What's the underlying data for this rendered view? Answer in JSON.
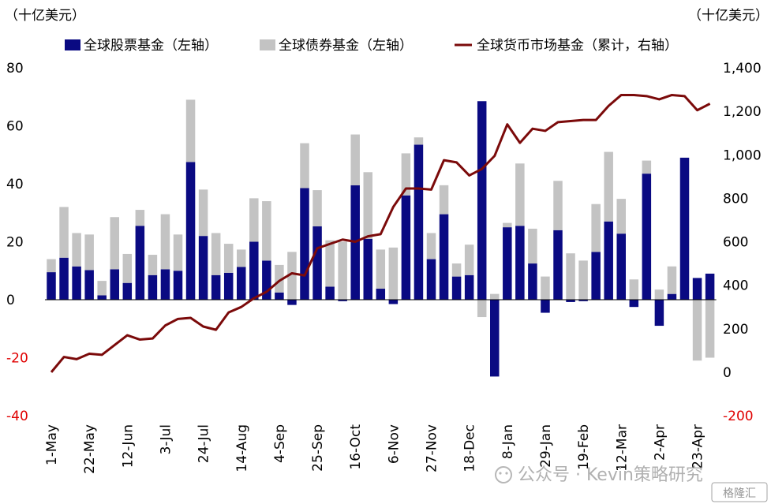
{
  "chart_data": {
    "type": "bar",
    "units": {
      "left": "（十亿美元）",
      "right": "（十亿美元）"
    },
    "legend": [
      {
        "label": "全球股票基金（左轴）",
        "kind": "box",
        "color": "#0a0a82"
      },
      {
        "label": "全球债券基金（左轴）",
        "kind": "box",
        "color": "#c3c3c3"
      },
      {
        "label": "全球货币市场基金（累计，右轴）",
        "kind": "line",
        "color": "#7b0a0a"
      }
    ],
    "colors": {
      "equity": "#0a0a82",
      "bond": "#c3c3c3",
      "money": "#7b0a0a",
      "negative_tick": "#e00000"
    },
    "left_axis": {
      "min": -40,
      "max": 80,
      "ticks": [
        80,
        60,
        40,
        20,
        0,
        -20,
        -40
      ]
    },
    "right_axis": {
      "min": -200,
      "max": 1400,
      "ticks": [
        "1,400",
        "1,200",
        "1,000",
        "800",
        "600",
        "400",
        "200",
        "0",
        "-200"
      ],
      "tick_values": [
        1400,
        1200,
        1000,
        800,
        600,
        400,
        200,
        0,
        -200
      ]
    },
    "x_tick_labels": [
      "1-May",
      "22-May",
      "12-Jun",
      "3-Jul",
      "24-Jul",
      "14-Aug",
      "4-Sep",
      "25-Sep",
      "16-Oct",
      "6-Nov",
      "27-Nov",
      "18-Dec",
      "8-Jan",
      "29-Jan",
      "19-Feb",
      "12-Mar",
      "2-Apr",
      "23-Apr"
    ],
    "x_tick_every": 3,
    "equity": [
      9.5,
      14.5,
      11.5,
      10.2,
      1.5,
      10.5,
      5.8,
      25.5,
      8.5,
      10.5,
      10,
      47.5,
      22,
      8.5,
      9.3,
      11.3,
      20,
      13.5,
      2.5,
      -1.8,
      38.5,
      25.3,
      4.5,
      -0.5,
      39.5,
      21,
      3.8,
      -1.5,
      36,
      53.5,
      14,
      29.5,
      8,
      8.5,
      68.5,
      -26.5,
      25,
      25.5,
      12.5,
      -4.5,
      24,
      -0.8,
      -0.5,
      16.5,
      27,
      22.8,
      -2.5,
      43.5,
      -9,
      2,
      49,
      7.5,
      9
    ],
    "bond": [
      4.5,
      17.5,
      11.5,
      12.3,
      5,
      18,
      10,
      5.5,
      7,
      19,
      12.5,
      21.5,
      16,
      14.5,
      10,
      6,
      15,
      20.5,
      9.5,
      16.5,
      15.5,
      12.5,
      16,
      20,
      17.5,
      23,
      13.5,
      18,
      14.5,
      2.5,
      9,
      10,
      4.5,
      10.5,
      -6,
      2,
      1.5,
      21.5,
      12,
      8,
      17,
      16,
      13.5,
      16.5,
      24,
      12,
      7,
      4.5,
      3.5,
      9.5,
      0,
      -21,
      -20
    ],
    "money_market": [
      0,
      70,
      60,
      85,
      80,
      125,
      170,
      150,
      155,
      215,
      245,
      250,
      210,
      195,
      275,
      300,
      340,
      370,
      420,
      455,
      445,
      570,
      590,
      610,
      600,
      625,
      635,
      760,
      845,
      845,
      840,
      975,
      965,
      905,
      935,
      995,
      1140,
      1055,
      1120,
      1110,
      1150,
      1155,
      1160,
      1160,
      1225,
      1275,
      1275,
      1270,
      1255,
      1275,
      1270,
      1205,
      1235
    ]
  },
  "watermark": {
    "text": "公众号 · Kevin策略研究",
    "badge": "格隆汇"
  }
}
